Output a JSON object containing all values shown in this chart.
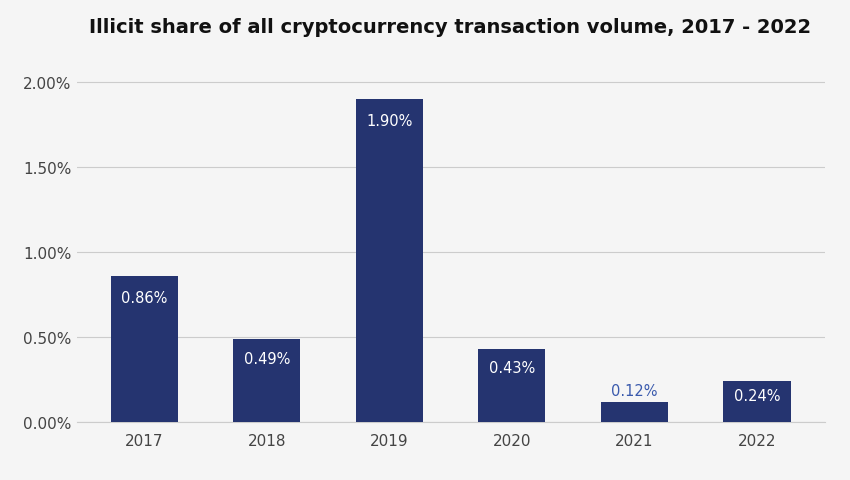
{
  "title": "Illicit share of all cryptocurrency transaction volume, 2017 - 2022",
  "categories": [
    "2017",
    "2018",
    "2019",
    "2020",
    "2021",
    "2022"
  ],
  "values": [
    0.0086,
    0.0049,
    0.019,
    0.0043,
    0.0012,
    0.0024
  ],
  "labels": [
    "0.86%",
    "0.49%",
    "1.90%",
    "0.43%",
    "0.12%",
    "0.24%"
  ],
  "bar_color": "#253470",
  "label_color_inside": "#ffffff",
  "label_color_2021": "#3a5aad",
  "background_color": "#f5f5f5",
  "grid_color": "#cccccc",
  "ylim": [
    0,
    0.0215
  ],
  "yticks": [
    0.0,
    0.005,
    0.01,
    0.015,
    0.02
  ],
  "ytick_labels": [
    "0.00%",
    "0.50%",
    "1.00%",
    "1.50%",
    "2.00%"
  ],
  "title_fontsize": 14,
  "label_fontsize": 10.5,
  "tick_fontsize": 11,
  "bar_width": 0.55
}
